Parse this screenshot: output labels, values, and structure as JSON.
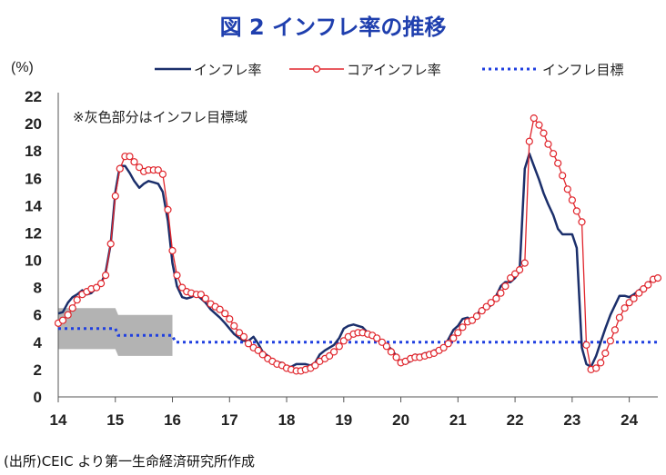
{
  "title": "図 2 インフレ率の推移",
  "source": "(出所)CEIC より第一生命経済研究所作成",
  "chart_data": {
    "type": "line",
    "unit_label": "(%)",
    "note": "※灰色部分はインフレ目標域",
    "xlim": [
      14,
      24.5
    ],
    "ylim": [
      0,
      22
    ],
    "xticks": [
      14,
      15,
      16,
      17,
      18,
      19,
      20,
      21,
      22,
      23,
      24
    ],
    "xtick_labels": [
      "14",
      "15",
      "16",
      "17",
      "18",
      "19",
      "20",
      "21",
      "22",
      "23",
      "24"
    ],
    "yticks": [
      0,
      2,
      4,
      6,
      8,
      10,
      12,
      14,
      16,
      18,
      20,
      22
    ],
    "ytick_labels": [
      "0",
      "2",
      "4",
      "6",
      "8",
      "10",
      "12",
      "14",
      "16",
      "18",
      "20",
      "22"
    ],
    "legend_position": "top",
    "series": [
      {
        "name": "インフレ率",
        "style": "solid",
        "color": "#1b2f6b",
        "points": [
          [
            14.0,
            6.1
          ],
          [
            14.08,
            6.2
          ],
          [
            14.17,
            6.9
          ],
          [
            14.25,
            7.3
          ],
          [
            14.33,
            7.5
          ],
          [
            14.42,
            7.8
          ],
          [
            14.5,
            7.5
          ],
          [
            14.58,
            7.6
          ],
          [
            14.67,
            8.0
          ],
          [
            14.75,
            8.3
          ],
          [
            14.83,
            9.1
          ],
          [
            14.92,
            11.2
          ],
          [
            15.0,
            15.0
          ],
          [
            15.08,
            16.9
          ],
          [
            15.17,
            16.9
          ],
          [
            15.25,
            16.4
          ],
          [
            15.33,
            15.8
          ],
          [
            15.42,
            15.3
          ],
          [
            15.5,
            15.6
          ],
          [
            15.58,
            15.8
          ],
          [
            15.67,
            15.7
          ],
          [
            15.75,
            15.6
          ],
          [
            15.83,
            15.0
          ],
          [
            15.92,
            12.9
          ],
          [
            16.0,
            9.8
          ],
          [
            16.08,
            8.1
          ],
          [
            16.17,
            7.3
          ],
          [
            16.25,
            7.2
          ],
          [
            16.33,
            7.3
          ],
          [
            16.42,
            7.5
          ],
          [
            16.5,
            7.2
          ],
          [
            16.58,
            6.9
          ],
          [
            16.67,
            6.4
          ],
          [
            16.75,
            6.1
          ],
          [
            16.83,
            5.8
          ],
          [
            16.92,
            5.4
          ],
          [
            17.0,
            5.0
          ],
          [
            17.08,
            4.6
          ],
          [
            17.17,
            4.3
          ],
          [
            17.25,
            4.1
          ],
          [
            17.33,
            4.1
          ],
          [
            17.42,
            4.4
          ],
          [
            17.5,
            3.9
          ],
          [
            17.58,
            3.3
          ],
          [
            17.67,
            3.0
          ],
          [
            17.75,
            2.7
          ],
          [
            17.83,
            2.5
          ],
          [
            17.92,
            2.5
          ],
          [
            18.0,
            2.2
          ],
          [
            18.08,
            2.2
          ],
          [
            18.17,
            2.4
          ],
          [
            18.25,
            2.4
          ],
          [
            18.33,
            2.4
          ],
          [
            18.42,
            2.3
          ],
          [
            18.5,
            2.5
          ],
          [
            18.58,
            3.1
          ],
          [
            18.67,
            3.4
          ],
          [
            18.75,
            3.6
          ],
          [
            18.83,
            3.8
          ],
          [
            18.92,
            4.3
          ],
          [
            19.0,
            5.0
          ],
          [
            19.08,
            5.2
          ],
          [
            19.17,
            5.3
          ],
          [
            19.25,
            5.2
          ],
          [
            19.33,
            5.1
          ],
          [
            19.42,
            4.7
          ],
          [
            19.5,
            4.6
          ],
          [
            19.58,
            4.3
          ],
          [
            19.67,
            4.0
          ],
          [
            19.75,
            3.8
          ],
          [
            19.83,
            3.5
          ],
          [
            19.92,
            3.0
          ],
          [
            20.0,
            2.4
          ],
          [
            20.08,
            2.5
          ],
          [
            20.17,
            2.6
          ],
          [
            20.25,
            3.1
          ],
          [
            20.33,
            3.0
          ],
          [
            20.42,
            3.2
          ],
          [
            20.5,
            3.2
          ],
          [
            20.58,
            3.4
          ],
          [
            20.67,
            3.4
          ],
          [
            20.75,
            3.6
          ],
          [
            20.83,
            4.2
          ],
          [
            20.92,
            4.9
          ],
          [
            21.0,
            5.2
          ],
          [
            21.08,
            5.7
          ],
          [
            21.17,
            5.8
          ],
          [
            21.25,
            5.5
          ],
          [
            21.33,
            6.0
          ],
          [
            21.42,
            6.5
          ],
          [
            21.5,
            6.5
          ],
          [
            21.58,
            6.7
          ],
          [
            21.67,
            7.4
          ],
          [
            21.75,
            8.1
          ],
          [
            21.83,
            8.4
          ],
          [
            21.92,
            8.4
          ],
          [
            22.0,
            8.7
          ],
          [
            22.08,
            9.2
          ],
          [
            22.17,
            16.7
          ],
          [
            22.25,
            17.8
          ],
          [
            22.33,
            16.9
          ],
          [
            22.42,
            15.9
          ],
          [
            22.5,
            14.9
          ],
          [
            22.58,
            14.1
          ],
          [
            22.67,
            13.3
          ],
          [
            22.75,
            12.3
          ],
          [
            22.83,
            11.9
          ],
          [
            22.92,
            11.9
          ],
          [
            23.0,
            11.9
          ],
          [
            23.08,
            10.9
          ],
          [
            23.17,
            3.6
          ],
          [
            23.25,
            2.4
          ],
          [
            23.33,
            2.2
          ],
          [
            23.42,
            3.0
          ],
          [
            23.5,
            4.0
          ],
          [
            23.58,
            5.0
          ],
          [
            23.67,
            6.0
          ],
          [
            23.75,
            6.7
          ],
          [
            23.83,
            7.4
          ],
          [
            23.92,
            7.4
          ],
          [
            24.0,
            7.3
          ],
          [
            24.08,
            7.5
          ],
          [
            24.17,
            7.8
          ],
          [
            24.25,
            8.0
          ],
          [
            24.33,
            8.3
          ],
          [
            24.42,
            8.6
          ]
        ]
      },
      {
        "name": "コアインフレ率",
        "style": "line-with-open-circles",
        "color": "#e0242b",
        "points": [
          [
            14.0,
            5.4
          ],
          [
            14.08,
            5.6
          ],
          [
            14.17,
            6.0
          ],
          [
            14.25,
            6.5
          ],
          [
            14.33,
            7.1
          ],
          [
            14.42,
            7.5
          ],
          [
            14.5,
            7.7
          ],
          [
            14.58,
            7.9
          ],
          [
            14.67,
            8.0
          ],
          [
            14.75,
            8.3
          ],
          [
            14.83,
            8.9
          ],
          [
            14.92,
            11.2
          ],
          [
            15.0,
            14.7
          ],
          [
            15.08,
            16.7
          ],
          [
            15.17,
            17.6
          ],
          [
            15.25,
            17.6
          ],
          [
            15.33,
            17.2
          ],
          [
            15.42,
            16.8
          ],
          [
            15.5,
            16.5
          ],
          [
            15.58,
            16.6
          ],
          [
            15.67,
            16.6
          ],
          [
            15.75,
            16.6
          ],
          [
            15.83,
            16.3
          ],
          [
            15.92,
            13.7
          ],
          [
            16.0,
            10.7
          ],
          [
            16.08,
            8.9
          ],
          [
            16.17,
            8.0
          ],
          [
            16.25,
            7.7
          ],
          [
            16.33,
            7.6
          ],
          [
            16.42,
            7.5
          ],
          [
            16.5,
            7.5
          ],
          [
            16.58,
            7.2
          ],
          [
            16.67,
            6.8
          ],
          [
            16.75,
            6.6
          ],
          [
            16.83,
            6.4
          ],
          [
            16.92,
            6.1
          ],
          [
            17.0,
            5.7
          ],
          [
            17.08,
            5.2
          ],
          [
            17.17,
            4.7
          ],
          [
            17.25,
            4.4
          ],
          [
            17.33,
            3.9
          ],
          [
            17.42,
            3.6
          ],
          [
            17.5,
            3.4
          ],
          [
            17.58,
            3.1
          ],
          [
            17.67,
            2.8
          ],
          [
            17.75,
            2.6
          ],
          [
            17.83,
            2.4
          ],
          [
            17.92,
            2.3
          ],
          [
            18.0,
            2.1
          ],
          [
            18.08,
            2.0
          ],
          [
            18.17,
            1.9
          ],
          [
            18.25,
            1.9
          ],
          [
            18.33,
            2.0
          ],
          [
            18.42,
            2.1
          ],
          [
            18.5,
            2.3
          ],
          [
            18.58,
            2.6
          ],
          [
            18.67,
            2.8
          ],
          [
            18.75,
            3.0
          ],
          [
            18.83,
            3.3
          ],
          [
            18.92,
            3.7
          ],
          [
            19.0,
            4.1
          ],
          [
            19.08,
            4.4
          ],
          [
            19.17,
            4.6
          ],
          [
            19.25,
            4.7
          ],
          [
            19.33,
            4.7
          ],
          [
            19.42,
            4.6
          ],
          [
            19.5,
            4.5
          ],
          [
            19.58,
            4.3
          ],
          [
            19.67,
            4.0
          ],
          [
            19.75,
            3.7
          ],
          [
            19.83,
            3.3
          ],
          [
            19.92,
            2.9
          ],
          [
            20.0,
            2.5
          ],
          [
            20.08,
            2.6
          ],
          [
            20.17,
            2.8
          ],
          [
            20.25,
            2.9
          ],
          [
            20.33,
            2.9
          ],
          [
            20.42,
            3.0
          ],
          [
            20.5,
            3.1
          ],
          [
            20.58,
            3.2
          ],
          [
            20.67,
            3.4
          ],
          [
            20.75,
            3.6
          ],
          [
            20.83,
            3.9
          ],
          [
            20.92,
            4.3
          ],
          [
            21.0,
            4.7
          ],
          [
            21.08,
            5.1
          ],
          [
            21.17,
            5.5
          ],
          [
            21.25,
            5.6
          ],
          [
            21.33,
            5.9
          ],
          [
            21.42,
            6.3
          ],
          [
            21.5,
            6.6
          ],
          [
            21.58,
            6.9
          ],
          [
            21.67,
            7.2
          ],
          [
            21.75,
            7.6
          ],
          [
            21.83,
            8.1
          ],
          [
            21.92,
            8.7
          ],
          [
            22.0,
            9.0
          ],
          [
            22.08,
            9.3
          ],
          [
            22.17,
            9.8
          ],
          [
            22.25,
            18.7
          ],
          [
            22.33,
            20.4
          ],
          [
            22.42,
            19.9
          ],
          [
            22.5,
            19.3
          ],
          [
            22.58,
            18.5
          ],
          [
            22.67,
            17.8
          ],
          [
            22.75,
            17.1
          ],
          [
            22.83,
            16.2
          ],
          [
            22.92,
            15.2
          ],
          [
            23.0,
            14.4
          ],
          [
            23.08,
            13.6
          ],
          [
            23.17,
            12.8
          ],
          [
            23.25,
            3.8
          ],
          [
            23.33,
            2.0
          ],
          [
            23.42,
            2.1
          ],
          [
            23.5,
            2.5
          ],
          [
            23.58,
            3.2
          ],
          [
            23.67,
            4.1
          ],
          [
            23.75,
            4.9
          ],
          [
            23.83,
            5.8
          ],
          [
            23.92,
            6.5
          ],
          [
            24.0,
            6.9
          ],
          [
            24.08,
            7.2
          ],
          [
            24.17,
            7.6
          ],
          [
            24.25,
            7.9
          ],
          [
            24.33,
            8.2
          ],
          [
            24.42,
            8.6
          ],
          [
            24.5,
            8.7
          ]
        ]
      },
      {
        "name": "インフレ目標",
        "style": "dotted",
        "color": "#1f3fe0",
        "points": [
          [
            14.0,
            5.0
          ],
          [
            15.0,
            5.0
          ],
          [
            15.05,
            4.5
          ],
          [
            16.0,
            4.5
          ],
          [
            16.05,
            4.0
          ],
          [
            24.5,
            4.0
          ]
        ]
      }
    ],
    "target_band": {
      "color": "#b3b3b3",
      "points_upper": [
        [
          14.0,
          6.5
        ],
        [
          15.0,
          6.5
        ],
        [
          15.05,
          6.0
        ],
        [
          16.0,
          6.0
        ]
      ],
      "points_lower": [
        [
          14.0,
          3.5
        ],
        [
          15.0,
          3.5
        ],
        [
          15.05,
          3.0
        ],
        [
          16.0,
          3.0
        ]
      ]
    }
  }
}
